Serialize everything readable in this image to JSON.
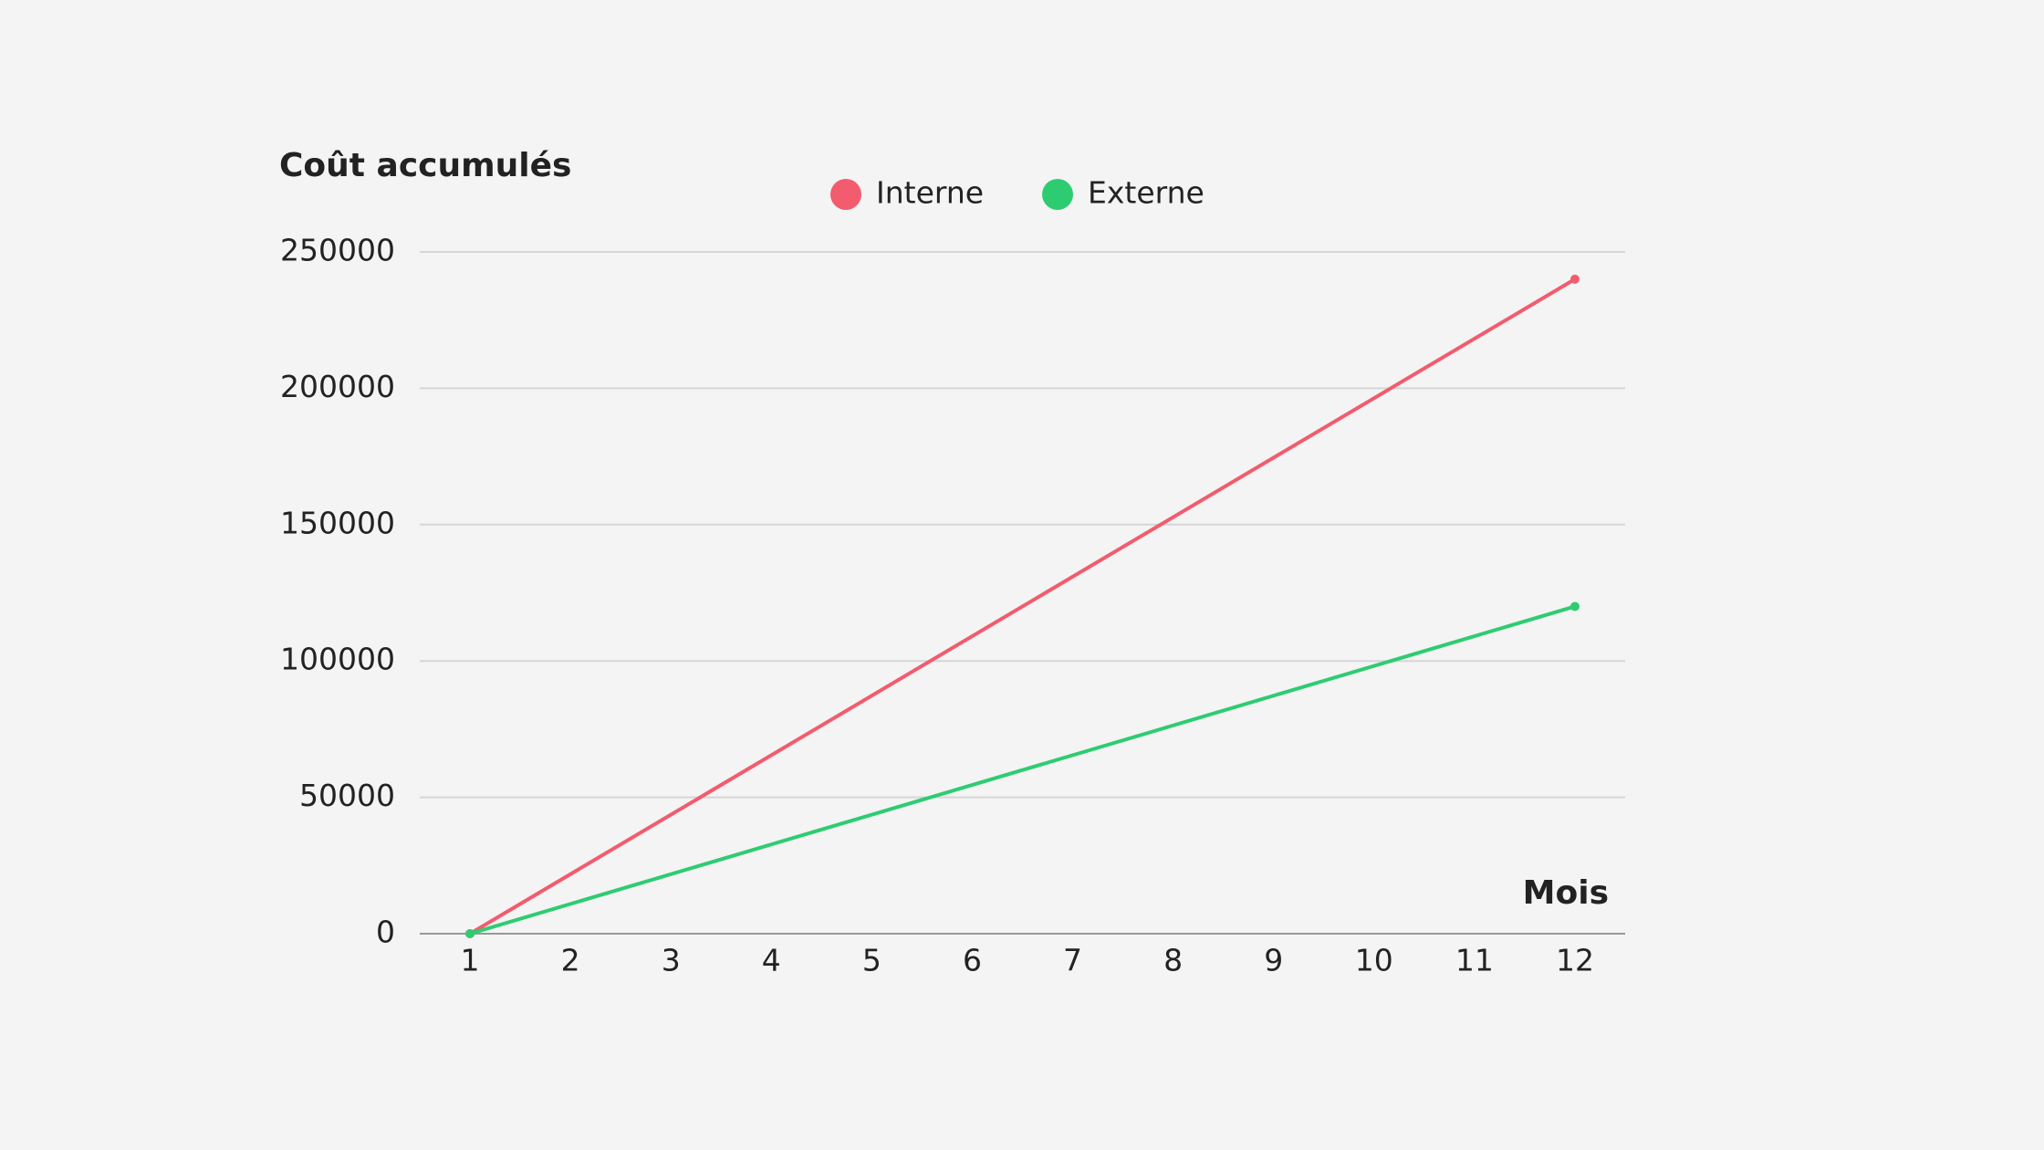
{
  "chart_data": {
    "type": "line",
    "y_label": "Coût accumulés",
    "x_label": "Mois",
    "x": [
      1,
      12
    ],
    "xlim": [
      0.5,
      12.5
    ],
    "xticks": [
      1,
      2,
      3,
      4,
      5,
      6,
      7,
      8,
      9,
      10,
      11,
      12
    ],
    "ylim": [
      0,
      250000
    ],
    "yticks": [
      0,
      50000,
      100000,
      150000,
      200000,
      250000
    ],
    "grid": true,
    "legend": "top",
    "series": [
      {
        "name": "Interne",
        "color": "#f25c6e",
        "values": [
          0,
          240000
        ]
      },
      {
        "name": "Externe",
        "color": "#2ecc71",
        "values": [
          0,
          120000
        ]
      }
    ]
  }
}
